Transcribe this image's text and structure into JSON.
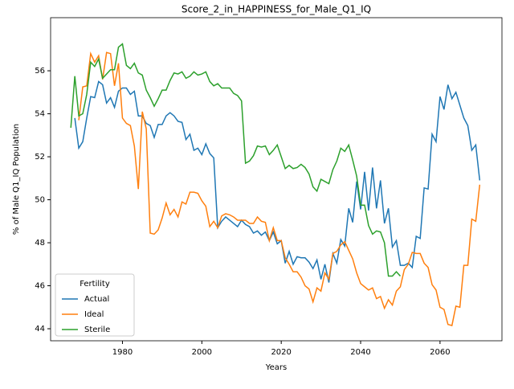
{
  "chart_data": {
    "type": "line",
    "title": "Score_2_in_HAPPINESS_for_Male_Q1_IQ",
    "xlabel": "Years",
    "ylabel": "% of Male Q1_IQ Population",
    "x": [
      1967,
      1968,
      1969,
      1970,
      1971,
      1972,
      1973,
      1974,
      1975,
      1976,
      1977,
      1978,
      1979,
      1980,
      1981,
      1982,
      1983,
      1984,
      1985,
      1986,
      1987,
      1988,
      1989,
      1990,
      1991,
      1992,
      1993,
      1994,
      1995,
      1996,
      1997,
      1998,
      1999,
      2000,
      2001,
      2002,
      2003,
      2004,
      2005,
      2006,
      2007,
      2008,
      2009,
      2010,
      2011,
      2012,
      2013,
      2014,
      2015,
      2016,
      2017,
      2018,
      2019,
      2020,
      2021,
      2022,
      2023,
      2024,
      2025,
      2026,
      2027,
      2028,
      2029,
      2030,
      2031,
      2032,
      2033,
      2034,
      2035,
      2036,
      2037,
      2038,
      2039,
      2040,
      2041,
      2042,
      2043,
      2044,
      2045,
      2046,
      2047,
      2048,
      2049,
      2050,
      2051,
      2052,
      2053,
      2054,
      2055,
      2056,
      2057,
      2058,
      2059,
      2060,
      2061,
      2062,
      2063,
      2064,
      2065,
      2066,
      2067,
      2068,
      2069,
      2070
    ],
    "series": [
      {
        "name": "Actual",
        "color": "#1f77b4",
        "values": [
          null,
          53.8,
          52.4,
          52.7,
          53.8,
          54.8,
          54.75,
          55.5,
          55.35,
          54.5,
          54.75,
          54.3,
          55.05,
          55.2,
          55.2,
          54.9,
          55.05,
          53.9,
          53.9,
          53.55,
          53.45,
          52.9,
          53.5,
          53.5,
          53.9,
          54.05,
          53.9,
          53.65,
          53.6,
          52.8,
          53.05,
          52.3,
          52.4,
          52.1,
          52.6,
          52.15,
          51.95,
          48.7,
          49.0,
          49.2,
          49.05,
          48.9,
          48.75,
          49.05,
          48.85,
          48.75,
          48.45,
          48.55,
          48.35,
          48.5,
          48.1,
          48.5,
          47.95,
          48.1,
          47.05,
          47.6,
          47.0,
          47.35,
          47.3,
          47.3,
          47.1,
          46.8,
          47.2,
          46.3,
          47.0,
          46.15,
          47.5,
          47.05,
          48.15,
          47.85,
          49.6,
          48.95,
          50.85,
          49.55,
          51.3,
          49.5,
          51.5,
          49.6,
          50.9,
          48.9,
          49.6,
          47.8,
          48.1,
          46.95,
          46.95,
          47.05,
          46.85,
          48.3,
          48.2,
          50.55,
          50.5,
          53.05,
          52.7,
          54.8,
          54.2,
          55.35,
          54.7,
          55.0,
          54.4,
          53.8,
          53.45,
          52.3,
          52.55,
          50.9
        ]
      },
      {
        "name": "Ideal",
        "color": "#ff7f0e",
        "values": [
          null,
          null,
          53.7,
          55.25,
          55.3,
          56.8,
          56.4,
          56.7,
          55.6,
          56.85,
          56.8,
          55.3,
          56.35,
          53.8,
          53.55,
          53.45,
          52.5,
          50.5,
          54.1,
          53.3,
          48.45,
          48.4,
          48.6,
          49.15,
          49.85,
          49.3,
          49.55,
          49.2,
          49.9,
          49.8,
          50.35,
          50.35,
          50.3,
          49.95,
          49.7,
          48.75,
          49.0,
          48.7,
          49.25,
          49.35,
          49.3,
          49.2,
          49.05,
          49.05,
          49.05,
          48.9,
          48.9,
          49.2,
          49.0,
          48.95,
          48.1,
          48.7,
          48.1,
          48.1,
          47.3,
          47.0,
          46.65,
          46.65,
          46.4,
          46.0,
          45.85,
          45.25,
          45.9,
          45.75,
          46.6,
          46.3,
          47.5,
          47.6,
          47.9,
          48.05,
          47.65,
          47.25,
          46.6,
          46.1,
          45.95,
          45.8,
          45.9,
          45.4,
          45.5,
          44.95,
          45.35,
          45.1,
          45.75,
          45.95,
          46.75,
          47.0,
          47.55,
          47.5,
          47.5,
          47.05,
          46.85,
          46.05,
          45.8,
          45.0,
          44.9,
          44.2,
          44.15,
          45.05,
          45.0,
          46.95,
          46.95,
          49.1,
          49.0,
          50.7
        ]
      },
      {
        "name": "Sterile",
        "color": "#2ca02c",
        "values": [
          53.35,
          55.75,
          53.9,
          54.0,
          54.9,
          56.4,
          56.2,
          56.55,
          55.65,
          55.85,
          56.05,
          56.05,
          57.1,
          57.25,
          56.25,
          56.1,
          56.35,
          55.9,
          55.8,
          55.1,
          54.75,
          54.35,
          54.7,
          55.1,
          55.1,
          55.55,
          55.9,
          55.85,
          55.95,
          55.65,
          55.75,
          55.95,
          55.8,
          55.85,
          55.95,
          55.5,
          55.3,
          55.4,
          55.2,
          55.2,
          55.2,
          54.95,
          54.85,
          54.6,
          51.7,
          51.8,
          52.05,
          52.5,
          52.45,
          52.5,
          52.1,
          52.3,
          52.55,
          52.0,
          51.45,
          51.6,
          51.45,
          51.5,
          51.65,
          51.5,
          51.2,
          50.6,
          50.4,
          50.95,
          50.85,
          50.75,
          51.4,
          51.8,
          52.4,
          52.25,
          52.55,
          51.85,
          51.1,
          49.75,
          49.75,
          48.8,
          48.4,
          48.55,
          48.5,
          48.0,
          46.45,
          46.45,
          46.65,
          46.45,
          null,
          null,
          null,
          null,
          null,
          null,
          null,
          null,
          null,
          null,
          null,
          null,
          null,
          null,
          null,
          null,
          null,
          null,
          null,
          null
        ]
      }
    ],
    "xlim": [
      1961.9,
      2075.6
    ],
    "xticks": [
      1980,
      2000,
      2020,
      2040,
      2060
    ],
    "ylim": [
      43.44,
      58.47
    ],
    "yticks": [
      44,
      46,
      48,
      50,
      52,
      54,
      56
    ],
    "grid": false,
    "legend": {
      "title": "Fertility",
      "loc": "lower left"
    }
  }
}
